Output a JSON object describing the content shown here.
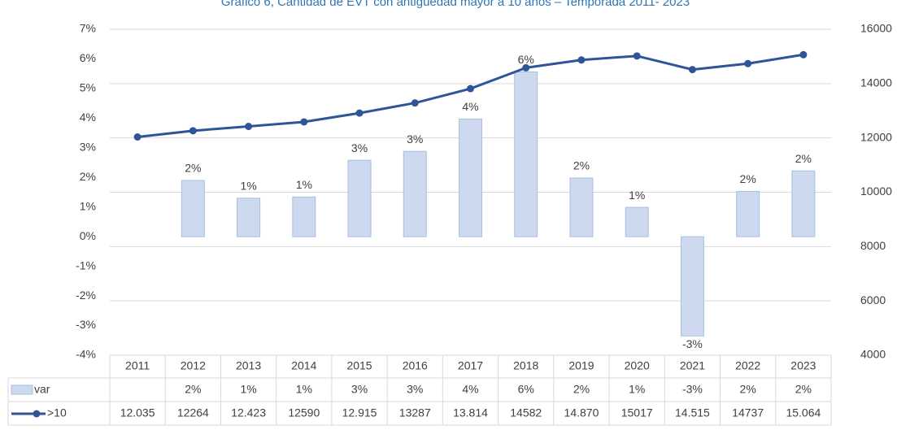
{
  "chart_data": {
    "type": "bar-line",
    "title": "Gráfico 6, Cantidad de EVT con antigüedad mayor a 10 años – Temporada 2011- 2023",
    "categories": [
      "2011",
      "2012",
      "2013",
      "2014",
      "2015",
      "2016",
      "2017",
      "2018",
      "2019",
      "2020",
      "2021",
      "2022",
      "2023"
    ],
    "series": [
      {
        "name": "var",
        "type": "bar",
        "color": "#cdd9ee",
        "edge": "#a9bfe3",
        "values": [
          null,
          1.9,
          1.3,
          1.34,
          2.58,
          2.88,
          3.97,
          5.56,
          1.98,
          0.99,
          -3.35,
          1.53,
          2.22
        ],
        "value_labels": [
          null,
          "2%",
          "1%",
          "1%",
          "3%",
          "3%",
          "4%",
          "6%",
          "2%",
          "1%",
          "-3%",
          "2%",
          "2%"
        ]
      },
      {
        "name": ">10",
        "type": "line",
        "axis": "y2",
        "color": "#2e5597",
        "values": [
          12035,
          12264,
          12423,
          12590,
          12915,
          13287,
          13814,
          14582,
          14870,
          15017,
          14515,
          14737,
          15064
        ],
        "value_labels": [
          "12.035",
          "12264",
          "12.423",
          "12590",
          "12.915",
          "13287",
          "13.814",
          "14582",
          "14.870",
          "15017",
          "14.515",
          "14737",
          "15.064"
        ]
      }
    ],
    "ylim": [
      -4,
      7
    ],
    "yticks": [
      {
        "value": 7,
        "label": "7%"
      },
      {
        "value": 6,
        "label": "6%"
      },
      {
        "value": 5,
        "label": "5%"
      },
      {
        "value": 4,
        "label": "4%"
      },
      {
        "value": 3,
        "label": "3%"
      },
      {
        "value": 2,
        "label": "2%"
      },
      {
        "value": 1,
        "label": "1%"
      },
      {
        "value": 0,
        "label": "0%"
      },
      {
        "value": -1,
        "label": "-1%"
      },
      {
        "value": -2,
        "label": "-2%"
      },
      {
        "value": -3,
        "label": "-3%"
      },
      {
        "value": -4,
        "label": "-4%"
      }
    ],
    "y2lim": [
      4000,
      16000
    ],
    "y2ticks": [
      16000,
      14000,
      12000,
      10000,
      8000,
      6000,
      4000
    ],
    "grid": true
  }
}
